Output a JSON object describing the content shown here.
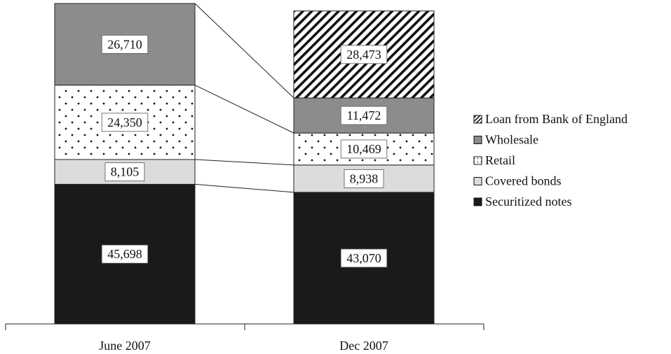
{
  "chart_data": {
    "type": "bar",
    "stacked": true,
    "categories": [
      "June 2007",
      "Dec 2007"
    ],
    "series": [
      {
        "name": "Securitized notes",
        "values": [
          45698,
          43070
        ],
        "value_labels": [
          "45,698",
          "43,070"
        ],
        "fill": "solid-black"
      },
      {
        "name": "Covered bonds",
        "values": [
          8105,
          8938
        ],
        "value_labels": [
          "8,105",
          "8,938"
        ],
        "fill": "light-gray"
      },
      {
        "name": "Retail",
        "values": [
          24350,
          10469
        ],
        "value_labels": [
          "24,350",
          "10,469"
        ],
        "fill": "dots"
      },
      {
        "name": "Wholesale",
        "values": [
          26710,
          11472
        ],
        "value_labels": [
          "26,710",
          "11,472"
        ],
        "fill": "medium-gray"
      },
      {
        "name": "Loan from Bank of England",
        "values": [
          null,
          28473
        ],
        "value_labels": [
          "",
          "28,473"
        ],
        "fill": "diagonal-hatch"
      }
    ],
    "legend_order": [
      "Loan from Bank of England",
      "Wholesale",
      "Retail",
      "Covered bonds",
      "Securitized notes"
    ],
    "legend_position": "right",
    "connector_lines": true,
    "grid": false,
    "title": "",
    "xlabel": "",
    "ylabel": ""
  },
  "colors": {
    "solid-black": "#1a1a1a",
    "light-gray": "#dcdcdc",
    "medium-gray": "#8c8c8c",
    "dots": "#111111",
    "diagonal-hatch": "#111111"
  }
}
